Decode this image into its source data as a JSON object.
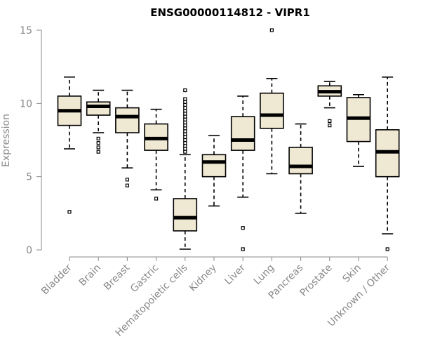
{
  "chart_data": {
    "type": "box",
    "title": "ENSG00000114812 - VIPR1",
    "xlabel": "",
    "ylabel": "Expression",
    "ylim": [
      0,
      15
    ],
    "yticks": [
      0,
      5,
      10,
      15
    ],
    "box_fill": "#efe8d2",
    "categories": [
      "Bladder",
      "Brain",
      "Breast",
      "Gastric",
      "Hematopoietic cells",
      "Kidney",
      "Liver",
      "Lung",
      "Pancreas",
      "Prostate",
      "Skin",
      "Unknown / Other"
    ],
    "boxes": [
      {
        "whisker_low": 6.9,
        "q1": 8.5,
        "median": 9.5,
        "q3": 10.5,
        "whisker_high": 11.8,
        "outliers": [
          2.6
        ]
      },
      {
        "whisker_low": 8.0,
        "q1": 9.2,
        "median": 9.8,
        "q3": 10.1,
        "whisker_high": 10.9,
        "outliers": [
          6.7,
          7.0,
          7.3,
          7.6
        ]
      },
      {
        "whisker_low": 5.6,
        "q1": 8.0,
        "median": 9.1,
        "q3": 9.7,
        "whisker_high": 10.9,
        "outliers": [
          4.4,
          4.8
        ]
      },
      {
        "whisker_low": 4.1,
        "q1": 6.8,
        "median": 7.6,
        "q3": 8.6,
        "whisker_high": 9.6,
        "outliers": [
          3.5
        ]
      },
      {
        "whisker_low": 0.05,
        "q1": 1.3,
        "median": 2.2,
        "q3": 3.5,
        "whisker_high": 6.5,
        "outliers": [
          6.7,
          6.9,
          7.1,
          7.3,
          7.5,
          7.7,
          7.9,
          8.1,
          8.3,
          8.5,
          8.7,
          8.9,
          9.1,
          9.3,
          9.5,
          9.7,
          9.9,
          10.1,
          10.3,
          10.9
        ]
      },
      {
        "whisker_low": 3.0,
        "q1": 5.0,
        "median": 6.0,
        "q3": 6.5,
        "whisker_high": 7.8,
        "outliers": []
      },
      {
        "whisker_low": 3.6,
        "q1": 6.8,
        "median": 7.5,
        "q3": 9.1,
        "whisker_high": 10.5,
        "outliers": [
          0.05,
          1.5
        ]
      },
      {
        "whisker_low": 5.2,
        "q1": 8.3,
        "median": 9.2,
        "q3": 10.7,
        "whisker_high": 11.7,
        "outliers": [
          15.0
        ]
      },
      {
        "whisker_low": 2.5,
        "q1": 5.2,
        "median": 5.7,
        "q3": 7.0,
        "whisker_high": 8.6,
        "outliers": []
      },
      {
        "whisker_low": 9.7,
        "q1": 10.5,
        "median": 10.8,
        "q3": 11.2,
        "whisker_high": 11.5,
        "outliers": [
          8.5,
          8.8
        ]
      },
      {
        "whisker_low": 5.7,
        "q1": 7.4,
        "median": 9.0,
        "q3": 10.4,
        "whisker_high": 10.6,
        "outliers": []
      },
      {
        "whisker_low": 1.1,
        "q1": 5.0,
        "median": 6.7,
        "q3": 8.2,
        "whisker_high": 11.8,
        "outliers": [
          0.05
        ]
      }
    ]
  }
}
